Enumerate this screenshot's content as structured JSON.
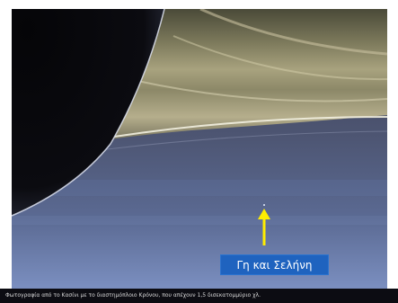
{
  "photo": {
    "annotation_label": "Γη και Σελήνη",
    "annotation_color": "#ffee00"
  },
  "caption": {
    "text": "Φωτογραφία από το Κασίνι με το διαστημόπλοιο Κρόνου, που απέχουν 1,5 δισεκατομμύριο χλ."
  }
}
